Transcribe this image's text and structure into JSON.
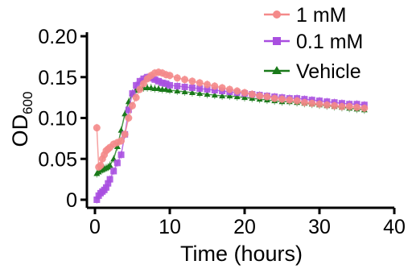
{
  "chart_data": {
    "type": "scatter",
    "title": "",
    "xlabel": "Time (hours)",
    "ylabel_main": "OD",
    "ylabel_sub": "600",
    "xlim": [
      0,
      40
    ],
    "ylim": [
      0,
      0.2
    ],
    "xticks": [
      0,
      10,
      20,
      30,
      40
    ],
    "xtick_labels": [
      "0",
      "10",
      "20",
      "30",
      "40"
    ],
    "yticks": [
      0,
      0.05,
      0.1,
      0.15,
      0.2
    ],
    "ytick_labels": [
      "0",
      "0.05",
      "0.10",
      "0.15",
      "0.20"
    ],
    "grid": false,
    "legend_position": "top-right",
    "series": [
      {
        "name": "1 mM",
        "color": "#f48a8a",
        "marker": "circle",
        "x": [
          0.25,
          0.5,
          0.75,
          1.0,
          1.25,
          1.5,
          1.75,
          2.0,
          2.5,
          3.0,
          3.5,
          4.0,
          4.5,
          5.0,
          5.5,
          6.0,
          6.5,
          7.0,
          7.5,
          8.0,
          8.5,
          9.0,
          9.5,
          10.0,
          11.0,
          12.0,
          13.0,
          14.0,
          15.0,
          16.0,
          17.0,
          18.0,
          19.0,
          20.0,
          21.0,
          22.0,
          23.0,
          24.0,
          25.0,
          26.0,
          27.0,
          28.0,
          29.0,
          30.0,
          31.0,
          32.0,
          33.0,
          34.0,
          35.0,
          36.0
        ],
        "y": [
          0.088,
          0.04,
          0.042,
          0.05,
          0.055,
          0.06,
          0.062,
          0.064,
          0.068,
          0.07,
          0.072,
          0.08,
          0.1,
          0.115,
          0.125,
          0.135,
          0.142,
          0.148,
          0.152,
          0.155,
          0.156,
          0.155,
          0.153,
          0.152,
          0.149,
          0.147,
          0.145,
          0.143,
          0.141,
          0.139,
          0.137,
          0.135,
          0.133,
          0.131,
          0.129,
          0.127,
          0.126,
          0.124,
          0.123,
          0.122,
          0.121,
          0.119,
          0.118,
          0.117,
          0.116,
          0.115,
          0.114,
          0.114,
          0.113,
          0.112
        ]
      },
      {
        "name": "0.1 mM",
        "color": "#a94fe0",
        "marker": "square",
        "x": [
          0.25,
          0.5,
          0.75,
          1.0,
          1.25,
          1.5,
          1.75,
          2.0,
          2.5,
          3.0,
          3.5,
          4.0,
          4.5,
          5.0,
          5.5,
          6.0,
          6.5,
          7.0,
          7.5,
          8.0,
          8.5,
          9.0,
          9.5,
          10.0,
          11.0,
          12.0,
          13.0,
          14.0,
          15.0,
          16.0,
          17.0,
          18.0,
          19.0,
          20.0,
          21.0,
          22.0,
          23.0,
          24.0,
          25.0,
          26.0,
          27.0,
          28.0,
          29.0,
          30.0,
          31.0,
          32.0,
          33.0,
          34.0,
          35.0,
          36.0
        ],
        "y": [
          0.0,
          0.005,
          0.008,
          0.01,
          0.012,
          0.015,
          0.02,
          0.025,
          0.035,
          0.045,
          0.055,
          0.08,
          0.11,
          0.13,
          0.14,
          0.145,
          0.148,
          0.15,
          0.149,
          0.147,
          0.145,
          0.143,
          0.142,
          0.14,
          0.139,
          0.138,
          0.137,
          0.136,
          0.135,
          0.134,
          0.133,
          0.132,
          0.131,
          0.13,
          0.129,
          0.128,
          0.127,
          0.126,
          0.125,
          0.124,
          0.124,
          0.123,
          0.122,
          0.121,
          0.12,
          0.119,
          0.118,
          0.117,
          0.117,
          0.116
        ]
      },
      {
        "name": "Vehicle",
        "color": "#1a7a1a",
        "marker": "triangle",
        "x": [
          0.25,
          0.5,
          0.75,
          1.0,
          1.25,
          1.5,
          1.75,
          2.0,
          2.5,
          3.0,
          3.5,
          4.0,
          4.5,
          5.0,
          5.5,
          6.0,
          6.5,
          7.0,
          7.5,
          8.0,
          8.5,
          9.0,
          9.5,
          10.0,
          11.0,
          12.0,
          13.0,
          14.0,
          15.0,
          16.0,
          17.0,
          18.0,
          19.0,
          20.0,
          21.0,
          22.0,
          23.0,
          24.0,
          25.0,
          26.0,
          27.0,
          28.0,
          29.0,
          30.0,
          31.0,
          32.0,
          33.0,
          34.0,
          35.0,
          36.0
        ],
        "y": [
          0.032,
          0.034,
          0.036,
          0.037,
          0.038,
          0.039,
          0.04,
          0.042,
          0.05,
          0.065,
          0.085,
          0.105,
          0.12,
          0.13,
          0.134,
          0.136,
          0.137,
          0.137,
          0.137,
          0.136,
          0.136,
          0.135,
          0.135,
          0.134,
          0.133,
          0.132,
          0.131,
          0.13,
          0.129,
          0.128,
          0.127,
          0.127,
          0.126,
          0.125,
          0.124,
          0.123,
          0.122,
          0.121,
          0.12,
          0.12,
          0.119,
          0.118,
          0.117,
          0.116,
          0.115,
          0.114,
          0.113,
          0.112,
          0.111,
          0.11
        ]
      }
    ]
  }
}
